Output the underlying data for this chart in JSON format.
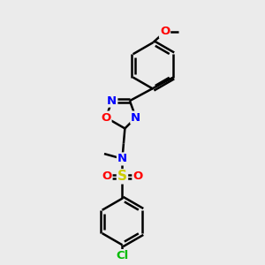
{
  "background_color": "#ebebeb",
  "bond_color": "#000000",
  "bond_width": 1.8,
  "atom_colors": {
    "C": "#000000",
    "N": "#0000ff",
    "O": "#ff0000",
    "S": "#cccc00",
    "Cl": "#00bb00"
  },
  "font_size": 9.5,
  "figsize": [
    3.0,
    3.0
  ],
  "dpi": 100
}
